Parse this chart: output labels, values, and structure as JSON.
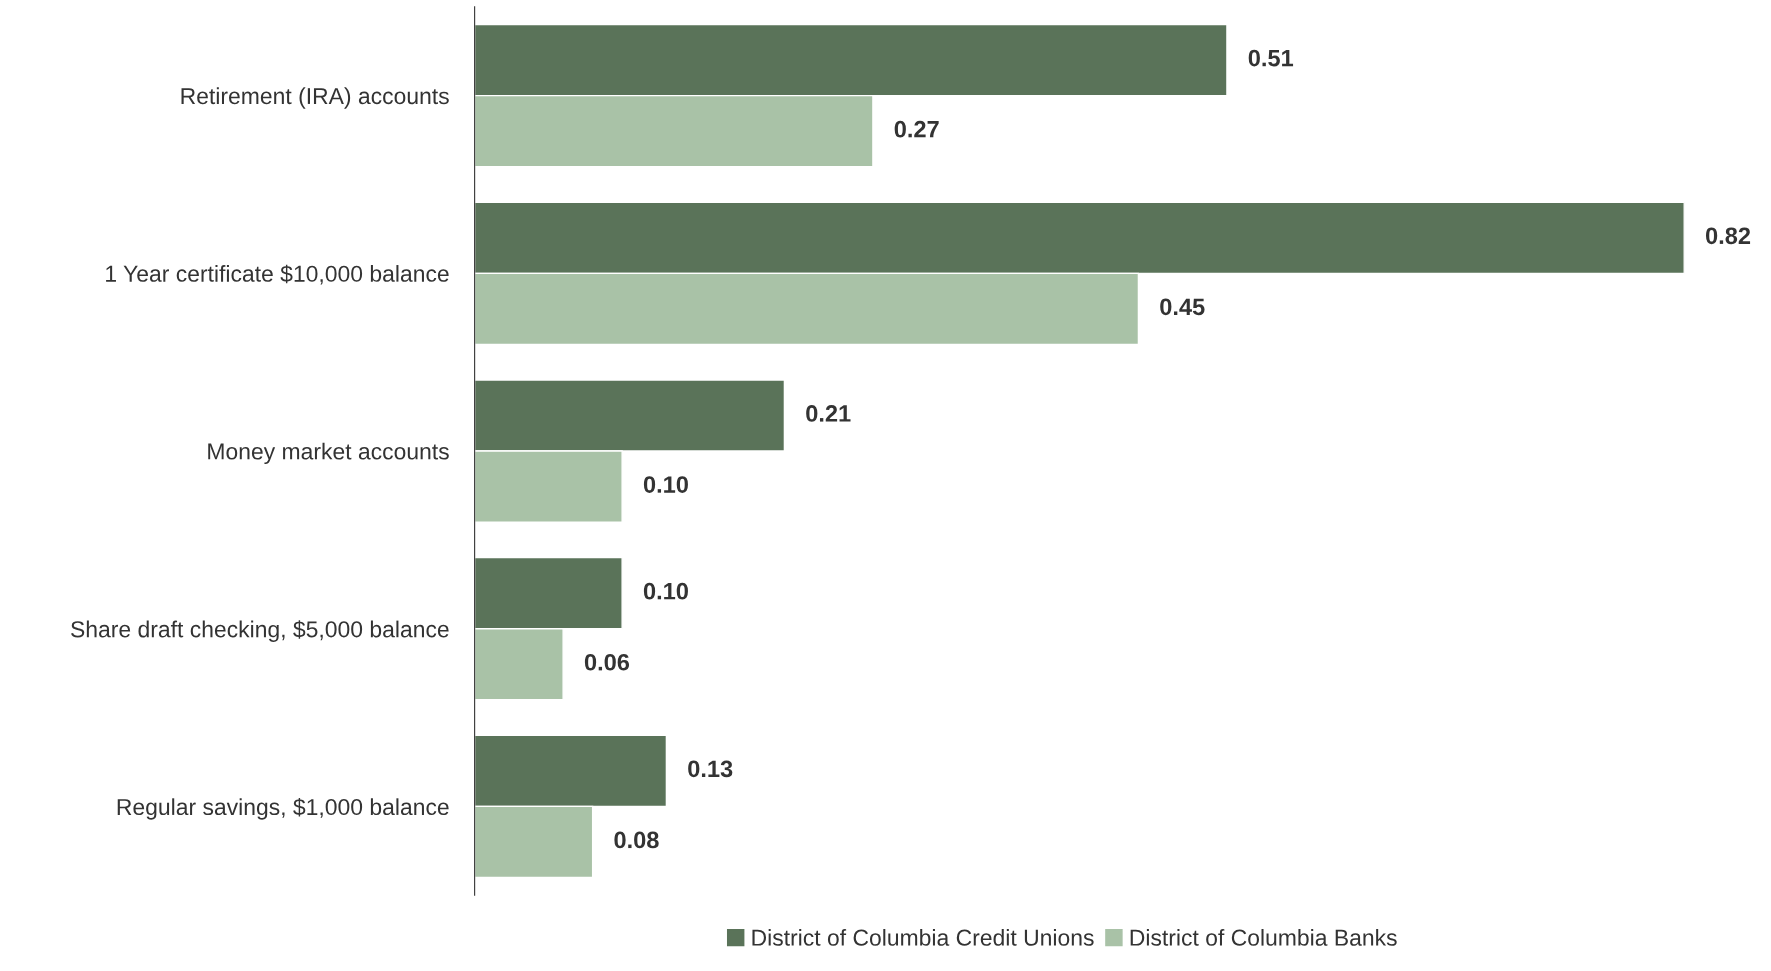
{
  "chart_data": {
    "type": "bar",
    "orientation": "horizontal",
    "categories": [
      "Retirement (IRA) accounts",
      "1 Year certificate $10,000 balance",
      "Money market accounts",
      "Share draft checking, $5,000 balance",
      "Regular savings, $1,000 balance"
    ],
    "series": [
      {
        "name": "District of Columbia Credit Unions",
        "color": "#5a7359",
        "values": [
          0.51,
          0.82,
          0.21,
          0.1,
          0.13
        ],
        "value_labels": [
          "0.51",
          "0.82",
          "0.21",
          "0.10",
          "0.13"
        ]
      },
      {
        "name": "District of Columbia Banks",
        "color": "#a9c2a7",
        "values": [
          0.27,
          0.45,
          0.1,
          0.06,
          0.08
        ],
        "value_labels": [
          "0.27",
          "0.45",
          "0.10",
          "0.06",
          "0.08"
        ]
      }
    ],
    "legend": "bottom",
    "grid": false
  }
}
